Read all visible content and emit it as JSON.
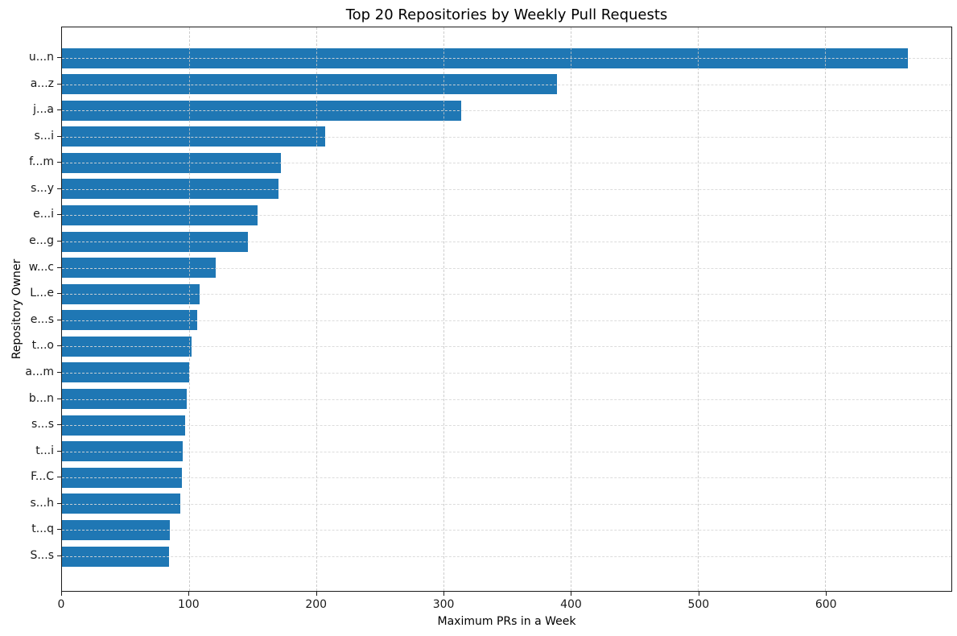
{
  "chart_data": {
    "type": "bar",
    "orientation": "horizontal",
    "title": "Top 20 Repositories by Weekly Pull Requests",
    "xlabel": "Maximum PRs in a Week",
    "ylabel": "Repository Owner",
    "categories": [
      "u...n",
      "a...z",
      "j...a",
      "s...i",
      "f...m",
      "s...y",
      "e...i",
      "e...g",
      "w...c",
      "L...e",
      "e...s",
      "t...o",
      "a...m",
      "b...n",
      "s...s",
      "t...i",
      "F...C",
      "s...h",
      "t...q",
      "S...s"
    ],
    "values": [
      665,
      389,
      314,
      207,
      172,
      170,
      154,
      146,
      121,
      108,
      106,
      102,
      100,
      98,
      97,
      95,
      94,
      93,
      85,
      84
    ],
    "x_ticks": [
      0,
      100,
      200,
      300,
      400,
      500,
      600
    ],
    "xlim": [
      0,
      699
    ],
    "grid": "dashed, both axes, drawn above bars",
    "legend": "none",
    "bar_color": "#1f77b4",
    "grid_color": "#cccccc",
    "spine_color": "#1a1a1a",
    "background_color": "#ffffff"
  }
}
